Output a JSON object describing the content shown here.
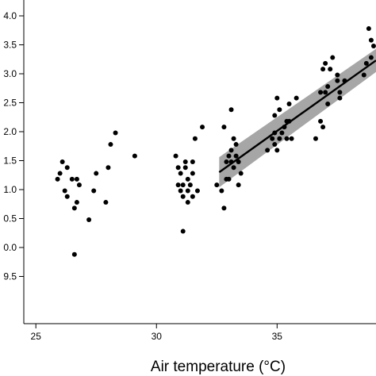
{
  "chart_data": {
    "type": "scatter",
    "title": "",
    "xlabel": "Air temperature (°C)",
    "ylabel": "",
    "xlim": [
      24.5,
      39.1
    ],
    "ylim": [
      9.3,
      4.12
    ],
    "x_ticks": [
      25,
      30,
      35
    ],
    "x_tick_labels": [
      "25",
      "30",
      "35"
    ],
    "y_ticks": [
      4.0,
      3.5,
      3.0,
      2.5,
      2.0,
      1.5,
      1.0,
      0.5,
      0.0,
      9.5
    ],
    "y_tick_labels": [
      "4.0",
      "3.5",
      "3.0",
      "2.5",
      "2.0",
      "1.5",
      "1.0",
      "0.5",
      "0.0",
      "9.5"
    ],
    "grid": false,
    "legend": "none",
    "point_color": "#000000",
    "line_color": "#000000",
    "band_color": "#a6a6a6",
    "points": [
      {
        "x": 25.9,
        "y": 1.3
      },
      {
        "x": 26.0,
        "y": 1.4
      },
      {
        "x": 26.1,
        "y": 1.6
      },
      {
        "x": 26.2,
        "y": 1.1
      },
      {
        "x": 26.3,
        "y": 1.5
      },
      {
        "x": 26.3,
        "y": 1.0
      },
      {
        "x": 26.5,
        "y": 1.3
      },
      {
        "x": 26.6,
        "y": 0.8
      },
      {
        "x": 26.6,
        "y": 0.0
      },
      {
        "x": 26.7,
        "y": 1.3
      },
      {
        "x": 26.7,
        "y": 0.9
      },
      {
        "x": 26.8,
        "y": 1.2
      },
      {
        "x": 27.2,
        "y": 0.6
      },
      {
        "x": 27.4,
        "y": 1.1
      },
      {
        "x": 27.5,
        "y": 1.4
      },
      {
        "x": 27.9,
        "y": 0.9
      },
      {
        "x": 28.0,
        "y": 1.5
      },
      {
        "x": 28.1,
        "y": 1.9
      },
      {
        "x": 28.3,
        "y": 2.1
      },
      {
        "x": 29.1,
        "y": 1.7
      },
      {
        "x": 30.8,
        "y": 1.7
      },
      {
        "x": 30.9,
        "y": 1.2
      },
      {
        "x": 30.9,
        "y": 1.5
      },
      {
        "x": 31.0,
        "y": 1.1
      },
      {
        "x": 31.0,
        "y": 1.4
      },
      {
        "x": 31.1,
        "y": 1.2
      },
      {
        "x": 31.1,
        "y": 1.0
      },
      {
        "x": 31.1,
        "y": 0.4
      },
      {
        "x": 31.2,
        "y": 1.6
      },
      {
        "x": 31.2,
        "y": 1.5
      },
      {
        "x": 31.3,
        "y": 1.3
      },
      {
        "x": 31.3,
        "y": 1.1
      },
      {
        "x": 31.3,
        "y": 0.9
      },
      {
        "x": 31.4,
        "y": 1.2
      },
      {
        "x": 31.5,
        "y": 1.6
      },
      {
        "x": 31.5,
        "y": 1.4
      },
      {
        "x": 31.5,
        "y": 1.0
      },
      {
        "x": 31.6,
        "y": 2.0
      },
      {
        "x": 31.7,
        "y": 1.1
      },
      {
        "x": 31.9,
        "y": 2.2
      },
      {
        "x": 32.5,
        "y": 1.2
      },
      {
        "x": 32.7,
        "y": 1.1
      },
      {
        "x": 32.8,
        "y": 0.8
      },
      {
        "x": 32.8,
        "y": 2.2
      },
      {
        "x": 32.9,
        "y": 1.6
      },
      {
        "x": 32.9,
        "y": 1.3
      },
      {
        "x": 33.0,
        "y": 1.7
      },
      {
        "x": 33.0,
        "y": 1.3
      },
      {
        "x": 33.1,
        "y": 1.8
      },
      {
        "x": 33.1,
        "y": 1.6
      },
      {
        "x": 33.1,
        "y": 2.5
      },
      {
        "x": 33.2,
        "y": 2.0
      },
      {
        "x": 33.2,
        "y": 1.5
      },
      {
        "x": 33.3,
        "y": 1.7
      },
      {
        "x": 33.3,
        "y": 1.9
      },
      {
        "x": 33.4,
        "y": 1.6
      },
      {
        "x": 33.4,
        "y": 1.2
      },
      {
        "x": 33.5,
        "y": 1.4
      },
      {
        "x": 34.6,
        "y": 1.8
      },
      {
        "x": 34.8,
        "y": 2.0
      },
      {
        "x": 34.9,
        "y": 2.1
      },
      {
        "x": 34.9,
        "y": 1.9
      },
      {
        "x": 34.9,
        "y": 2.4
      },
      {
        "x": 35.0,
        "y": 2.7
      },
      {
        "x": 35.0,
        "y": 1.8
      },
      {
        "x": 35.1,
        "y": 2.0
      },
      {
        "x": 35.1,
        "y": 2.5
      },
      {
        "x": 35.2,
        "y": 2.1
      },
      {
        "x": 35.3,
        "y": 2.2
      },
      {
        "x": 35.4,
        "y": 2.0
      },
      {
        "x": 35.4,
        "y": 2.3
      },
      {
        "x": 35.5,
        "y": 2.6
      },
      {
        "x": 35.5,
        "y": 2.3
      },
      {
        "x": 35.6,
        "y": 2.0
      },
      {
        "x": 35.8,
        "y": 2.7
      },
      {
        "x": 36.6,
        "y": 2.0
      },
      {
        "x": 36.8,
        "y": 2.3
      },
      {
        "x": 36.8,
        "y": 2.8
      },
      {
        "x": 36.9,
        "y": 3.2
      },
      {
        "x": 36.9,
        "y": 2.2
      },
      {
        "x": 37.0,
        "y": 2.8
      },
      {
        "x": 37.0,
        "y": 3.3
      },
      {
        "x": 37.1,
        "y": 2.6
      },
      {
        "x": 37.1,
        "y": 2.9
      },
      {
        "x": 37.2,
        "y": 3.2
      },
      {
        "x": 37.3,
        "y": 3.4
      },
      {
        "x": 37.5,
        "y": 3.1
      },
      {
        "x": 37.5,
        "y": 3.0
      },
      {
        "x": 37.6,
        "y": 2.7
      },
      {
        "x": 37.6,
        "y": 2.8
      },
      {
        "x": 37.8,
        "y": 3.0
      },
      {
        "x": 38.6,
        "y": 3.1
      },
      {
        "x": 38.7,
        "y": 3.3
      },
      {
        "x": 38.8,
        "y": 3.9
      },
      {
        "x": 38.9,
        "y": 3.7
      },
      {
        "x": 38.9,
        "y": 3.4
      },
      {
        "x": 39.0,
        "y": 3.6
      }
    ],
    "fit": {
      "x": [
        32.6,
        39.1
      ],
      "y": [
        1.42,
        3.35
      ],
      "band_upper": [
        1.68,
        3.55
      ],
      "band_lower": [
        1.16,
        3.15
      ]
    }
  }
}
